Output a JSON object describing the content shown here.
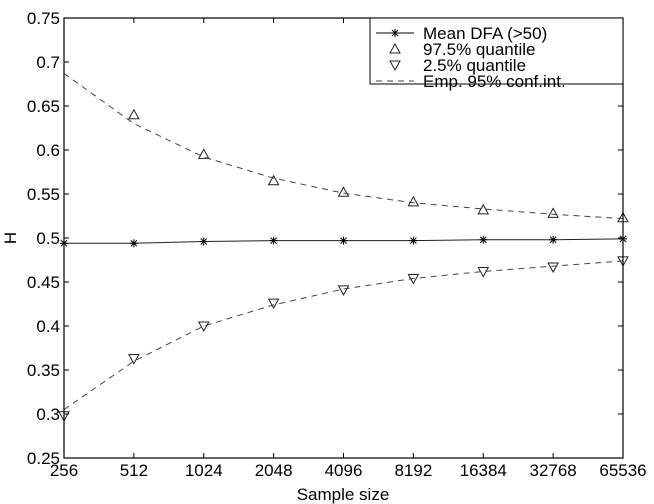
{
  "chart_data": {
    "type": "line",
    "title": "",
    "xlabel": "Sample size",
    "ylabel": "H",
    "x": [
      256,
      512,
      1024,
      2048,
      4096,
      8192,
      16384,
      32768,
      65536
    ],
    "xticklabels": [
      "256",
      "512",
      "1024",
      "2048",
      "4096",
      "8192",
      "16384",
      "32768",
      "65536"
    ],
    "xscale": "log2",
    "ylim": [
      0.25,
      0.75
    ],
    "yticks": [
      0.25,
      0.3,
      0.35,
      0.4,
      0.45,
      0.5,
      0.55,
      0.6,
      0.65,
      0.7,
      0.75
    ],
    "yticklabels": [
      "0.25",
      "0.3",
      "0.35",
      "0.4",
      "0.45",
      "0.5",
      "0.55",
      "0.6",
      "0.65",
      "0.7",
      "0.75"
    ],
    "grid": false,
    "legend_position": "top-right",
    "series": [
      {
        "name": "Mean DFA (>50)",
        "style": "solid-star",
        "values": [
          0.494,
          0.494,
          0.496,
          0.497,
          0.497,
          0.497,
          0.498,
          0.498,
          0.499
        ]
      },
      {
        "name": "97.5% quantile",
        "style": "triangle-up",
        "values": [
          null,
          0.64,
          0.595,
          0.565,
          0.552,
          0.541,
          0.532,
          0.528,
          0.523
        ]
      },
      {
        "name": "2.5% quantile",
        "style": "triangle-down",
        "values": [
          0.298,
          0.363,
          0.4,
          0.426,
          0.441,
          0.454,
          0.462,
          0.467,
          0.474
        ]
      },
      {
        "name": "Emp. 95% conf.int.",
        "style": "dashed",
        "values": [
          0.687,
          0.63,
          0.592,
          0.568,
          0.551,
          0.54,
          0.533,
          0.527,
          0.522
        ],
        "lower_values": [
          0.305,
          0.36,
          0.4,
          0.424,
          0.442,
          0.454,
          0.462,
          0.468,
          0.474
        ]
      }
    ]
  }
}
